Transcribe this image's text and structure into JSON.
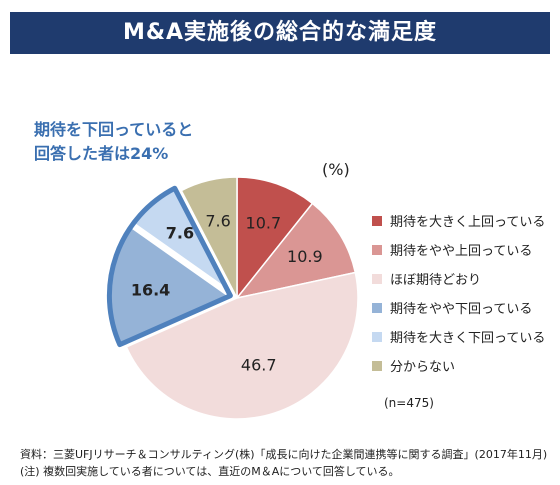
{
  "title": "M&A実施後の総合的な満足度",
  "callout": {
    "line1": "期待を下回っていると",
    "line2": "回答した者は24%"
  },
  "chart_data": {
    "type": "pie",
    "unit_label": "(%)",
    "start_angle_deg": 0,
    "direction": "clockwise",
    "slices": [
      {
        "label": "期待を大きく上回っている",
        "value": 10.7,
        "color": "#c0504d",
        "highlighted": false
      },
      {
        "label": "期待をやや上回っている",
        "value": 10.9,
        "color": "#da9694",
        "highlighted": false
      },
      {
        "label": "ほぼ期待どおり",
        "value": 46.7,
        "color": "#f2dcdb",
        "highlighted": false
      },
      {
        "label": "期待をやや下回っている",
        "value": 16.4,
        "color": "#95b3d7",
        "highlighted": true
      },
      {
        "label": "期待を大きく下回っている",
        "value": 7.6,
        "color": "#c5d9f1",
        "highlighted": true
      },
      {
        "label": "分からない",
        "value": 7.6,
        "color": "#c4bd97",
        "highlighted": false
      }
    ],
    "highlight_color": "#4f81bd",
    "sample_note": "(n=475)",
    "legend_position": "right"
  },
  "footer": {
    "source": "資料：三菱UFJリサーチ＆コンサルティング(株)「成長に向けた企業間連携等に関する調査」(2017年11月)",
    "note": "(注) 複数回実施している者については、直近のM＆Aについて回答している。"
  }
}
